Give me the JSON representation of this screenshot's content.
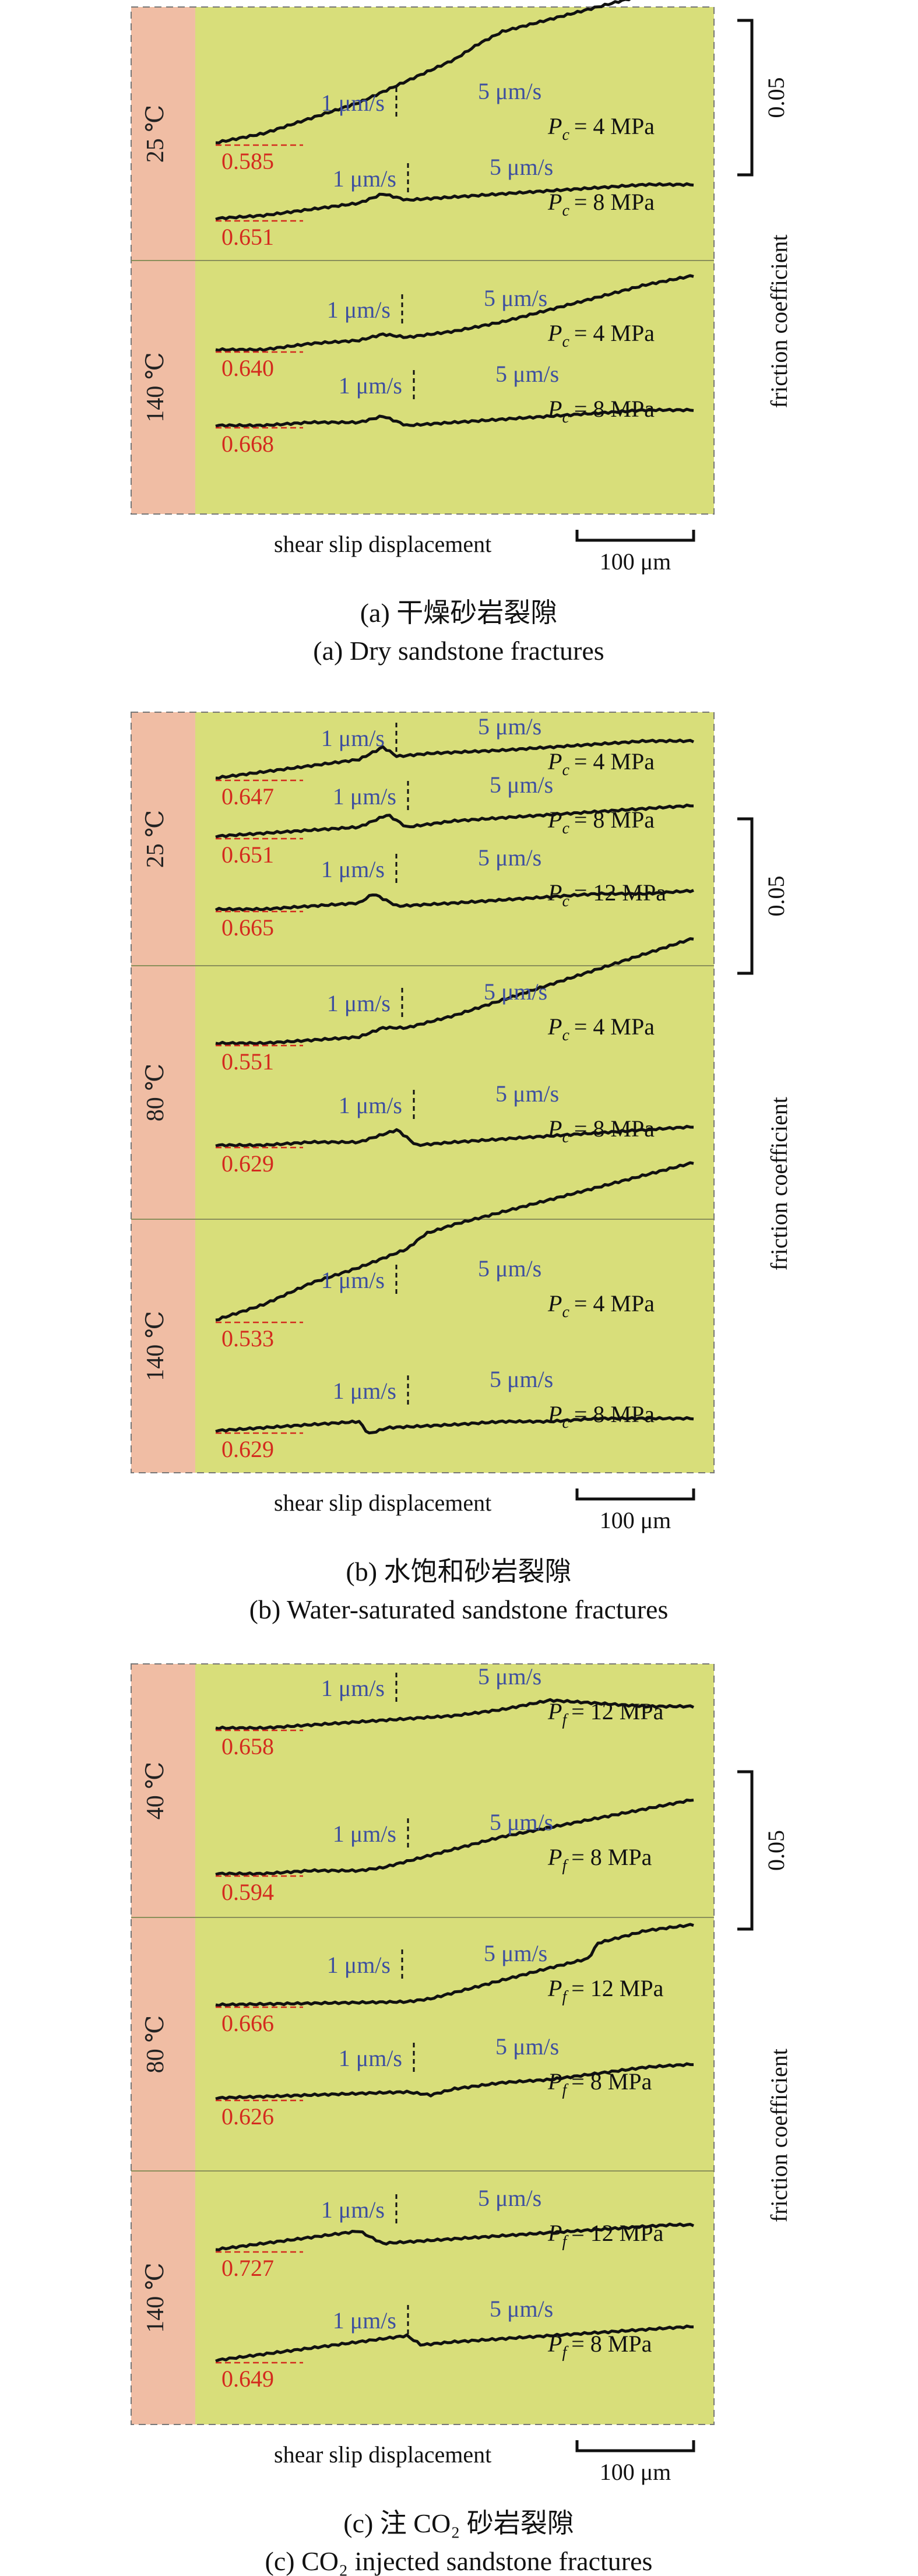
{
  "colors": {
    "plot_bg": "#d8de7a",
    "temp_bar": "#f0bda4",
    "curve": "#111111",
    "rate_label": "#3d4fa0",
    "initial_value": "#d42a1e",
    "border": "#777777"
  },
  "chart_data": [
    {
      "type": "line",
      "caption_cn": "(a) 干燥砂岩裂隙",
      "caption_en": "(a) Dry sandstone fractures",
      "xlabel": "shear slip displacement",
      "x_scale_label": "100 μm",
      "ylabel": "friction coefficient",
      "y_scale_label": "0.05",
      "groups": [
        {
          "temperature": "25 ℃",
          "series": [
            {
              "condition_symbol": "P",
              "condition_sub": "c",
              "condition_value": "= 4 MPa",
              "initial": "0.585",
              "rate1": "1 μm/s",
              "rate2": "5 μm/s",
              "x": [
                0,
                0.1,
                0.2,
                0.3,
                0.4,
                0.5,
                0.55,
                0.6,
                0.7,
                0.8,
                0.9,
                1.0
              ],
              "y": [
                0.585,
                0.588,
                0.593,
                0.598,
                0.605,
                0.612,
                0.617,
                0.621,
                0.625,
                0.629,
                0.633,
                0.634
              ]
            },
            {
              "condition_symbol": "P",
              "condition_sub": "c",
              "condition_value": "= 8 MPa",
              "initial": "0.651",
              "rate1": "1 μm/s",
              "rate2": "5 μm/s",
              "x": [
                0,
                0.1,
                0.2,
                0.3,
                0.35,
                0.4,
                0.5,
                0.6,
                0.7,
                0.8,
                0.9,
                1.0
              ],
              "y": [
                0.651,
                0.652,
                0.654,
                0.656,
                0.659,
                0.657,
                0.658,
                0.659,
                0.66,
                0.661,
                0.662,
                0.662
              ]
            }
          ]
        },
        {
          "temperature": "140 ℃",
          "series": [
            {
              "condition_symbol": "P",
              "condition_sub": "c",
              "condition_value": "= 4 MPa",
              "initial": "0.640",
              "rate1": "1 μm/s",
              "rate2": "5 μm/s",
              "x": [
                0,
                0.1,
                0.2,
                0.3,
                0.35,
                0.4,
                0.5,
                0.6,
                0.7,
                0.8,
                0.9,
                1.0
              ],
              "y": [
                0.64,
                0.64,
                0.642,
                0.643,
                0.645,
                0.644,
                0.646,
                0.649,
                0.653,
                0.657,
                0.661,
                0.664
              ]
            },
            {
              "condition_symbol": "P",
              "condition_sub": "c",
              "condition_value": "= 8 MPa",
              "initial": "0.668",
              "rate1": "1 μm/s",
              "rate2": "5 μm/s",
              "x": [
                0,
                0.1,
                0.2,
                0.3,
                0.35,
                0.4,
                0.5,
                0.6,
                0.7,
                0.8,
                0.9,
                1.0
              ],
              "y": [
                0.668,
                0.668,
                0.669,
                0.669,
                0.671,
                0.668,
                0.669,
                0.67,
                0.671,
                0.672,
                0.673,
                0.673
              ]
            }
          ]
        }
      ]
    },
    {
      "type": "line",
      "caption_cn": "(b) 水饱和砂岩裂隙",
      "caption_en": "(b) Water-saturated sandstone fractures",
      "xlabel": "shear slip displacement",
      "x_scale_label": "100 μm",
      "ylabel": "friction coefficient",
      "y_scale_label": "0.05",
      "groups": [
        {
          "temperature": "25 ℃",
          "series": [
            {
              "condition_symbol": "P",
              "condition_sub": "c",
              "condition_value": "= 4 MPa",
              "initial": "0.647",
              "rate1": "1 μm/s",
              "rate2": "5 μm/s",
              "x": [
                0,
                0.1,
                0.2,
                0.3,
                0.35,
                0.38,
                0.45,
                0.6,
                0.7,
                0.8,
                0.9,
                1.0
              ],
              "y": [
                0.647,
                0.649,
                0.651,
                0.653,
                0.657,
                0.654,
                0.655,
                0.656,
                0.657,
                0.658,
                0.659,
                0.659
              ]
            },
            {
              "condition_symbol": "P",
              "condition_sub": "c",
              "condition_value": "= 8 MPa",
              "initial": "0.651",
              "rate1": "1 μm/s",
              "rate2": "5 μm/s",
              "x": [
                0,
                0.1,
                0.2,
                0.3,
                0.36,
                0.4,
                0.5,
                0.6,
                0.7,
                0.8,
                0.9,
                1.0
              ],
              "y": [
                0.651,
                0.652,
                0.653,
                0.654,
                0.658,
                0.654,
                0.656,
                0.657,
                0.658,
                0.659,
                0.66,
                0.661
              ]
            },
            {
              "condition_symbol": "P",
              "condition_sub": "c",
              "condition_value": "= 12 MPa",
              "initial": "0.665",
              "rate1": "1 μm/s",
              "rate2": "5 μm/s",
              "x": [
                0,
                0.1,
                0.2,
                0.3,
                0.33,
                0.38,
                0.5,
                0.6,
                0.7,
                0.8,
                0.9,
                1.0
              ],
              "y": [
                0.665,
                0.665,
                0.666,
                0.667,
                0.67,
                0.666,
                0.667,
                0.668,
                0.669,
                0.67,
                0.67,
                0.671
              ]
            }
          ]
        },
        {
          "temperature": "80 ℃",
          "series": [
            {
              "condition_symbol": "P",
              "condition_sub": "c",
              "condition_value": "= 4 MPa",
              "initial": "0.551",
              "rate1": "1 μm/s",
              "rate2": "5 μm/s",
              "x": [
                0,
                0.1,
                0.2,
                0.3,
                0.35,
                0.4,
                0.5,
                0.6,
                0.7,
                0.8,
                0.9,
                1.0
              ],
              "y": [
                0.551,
                0.551,
                0.552,
                0.553,
                0.556,
                0.556,
                0.56,
                0.565,
                0.57,
                0.575,
                0.58,
                0.585
              ]
            },
            {
              "condition_symbol": "P",
              "condition_sub": "c",
              "condition_value": "= 8 MPa",
              "initial": "0.629",
              "rate1": "1 μm/s",
              "rate2": "5 μm/s",
              "x": [
                0,
                0.1,
                0.2,
                0.3,
                0.38,
                0.42,
                0.5,
                0.6,
                0.7,
                0.8,
                0.9,
                1.0
              ],
              "y": [
                0.629,
                0.629,
                0.63,
                0.63,
                0.634,
                0.629,
                0.63,
                0.631,
                0.632,
                0.633,
                0.634,
                0.635
              ]
            }
          ]
        },
        {
          "temperature": "140 ℃",
          "series": [
            {
              "condition_symbol": "P",
              "condition_sub": "c",
              "condition_value": "= 4 MPa",
              "initial": "0.533",
              "rate1": "1 μm/s",
              "rate2": "5 μm/s",
              "x": [
                0,
                0.1,
                0.2,
                0.3,
                0.4,
                0.44,
                0.5,
                0.6,
                0.7,
                0.8,
                0.9,
                1.0
              ],
              "y": [
                0.533,
                0.538,
                0.545,
                0.55,
                0.556,
                0.561,
                0.564,
                0.568,
                0.572,
                0.576,
                0.58,
                0.584
              ]
            },
            {
              "condition_symbol": "P",
              "condition_sub": "c",
              "condition_value": "= 8 MPa",
              "initial": "0.629",
              "rate1": "1 μm/s",
              "rate2": "5 μm/s",
              "x": [
                0,
                0.1,
                0.2,
                0.3,
                0.32,
                0.36,
                0.5,
                0.6,
                0.7,
                0.8,
                0.9,
                1.0
              ],
              "y": [
                0.629,
                0.63,
                0.631,
                0.632,
                0.628,
                0.63,
                0.631,
                0.632,
                0.632,
                0.633,
                0.633,
                0.633
              ]
            }
          ]
        }
      ]
    },
    {
      "type": "line",
      "caption_cn": "(c) 注 CO₂ 砂岩裂隙",
      "caption_en": "(c) CO₂ injected sandstone fractures",
      "xlabel": "shear slip displacement",
      "x_scale_label": "100 μm",
      "ylabel": "friction coefficient",
      "y_scale_label": "0.05",
      "groups": [
        {
          "temperature": "40 ℃",
          "series": [
            {
              "condition_symbol": "P",
              "condition_sub": "f",
              "condition_value": "= 12 MPa",
              "initial": "0.658",
              "rate1": "1 μm/s",
              "rate2": "5 μm/s",
              "x": [
                0,
                0.1,
                0.2,
                0.3,
                0.4,
                0.5,
                0.6,
                0.7,
                0.8,
                0.9,
                1.0
              ],
              "y": [
                0.658,
                0.658,
                0.659,
                0.66,
                0.661,
                0.662,
                0.664,
                0.667,
                0.666,
                0.665,
                0.665
              ]
            },
            {
              "condition_symbol": "P",
              "condition_sub": "f",
              "condition_value": "= 8 MPa",
              "initial": "0.594",
              "rate1": "1 μm/s",
              "rate2": "5 μm/s",
              "x": [
                0,
                0.1,
                0.2,
                0.3,
                0.35,
                0.4,
                0.5,
                0.6,
                0.7,
                0.8,
                0.9,
                1.0
              ],
              "y": [
                0.594,
                0.594,
                0.595,
                0.595,
                0.596,
                0.598,
                0.602,
                0.606,
                0.609,
                0.612,
                0.615,
                0.618
              ]
            }
          ]
        },
        {
          "temperature": "80 ℃",
          "series": [
            {
              "condition_symbol": "P",
              "condition_sub": "f",
              "condition_value": "= 12 MPa",
              "initial": "0.666",
              "rate1": "1 μm/s",
              "rate2": "5 μm/s",
              "x": [
                0,
                0.4,
                0.45,
                0.5,
                0.6,
                0.7,
                0.78,
                0.8,
                0.9,
                1.0
              ],
              "y": [
                0.666,
                0.667,
                0.668,
                0.67,
                0.674,
                0.678,
                0.681,
                0.686,
                0.69,
                0.692
              ]
            },
            {
              "condition_symbol": "P",
              "condition_sub": "f",
              "condition_value": "= 8 MPa",
              "initial": "0.626",
              "rate1": "1 μm/s",
              "rate2": "5 μm/s",
              "x": [
                0,
                0.4,
                0.45,
                0.5,
                0.6,
                0.7,
                0.8,
                0.9,
                1.0
              ],
              "y": [
                0.626,
                0.628,
                0.627,
                0.629,
                0.631,
                0.632,
                0.634,
                0.636,
                0.637
              ]
            }
          ]
        },
        {
          "temperature": "140 ℃",
          "series": [
            {
              "condition_symbol": "P",
              "condition_sub": "f",
              "condition_value": "= 12 MPa",
              "initial": "0.727",
              "rate1": "1 μm/s",
              "rate2": "5 μm/s",
              "x": [
                0,
                0.3,
                0.35,
                0.45,
                0.55,
                0.65,
                0.75,
                0.85,
                0.95,
                1.0
              ],
              "y": [
                0.727,
                0.733,
                0.729,
                0.73,
                0.731,
                0.732,
                0.733,
                0.734,
                0.735,
                0.735
              ]
            },
            {
              "condition_symbol": "P",
              "condition_sub": "f",
              "condition_value": "= 8 MPa",
              "initial": "0.649",
              "rate1": "1 μm/s",
              "rate2": "5 μm/s",
              "x": [
                0,
                0.4,
                0.43,
                0.5,
                0.6,
                0.7,
                0.8,
                0.9,
                1.0
              ],
              "y": [
                0.649,
                0.657,
                0.654,
                0.655,
                0.656,
                0.657,
                0.658,
                0.659,
                0.66
              ]
            }
          ]
        }
      ]
    }
  ]
}
